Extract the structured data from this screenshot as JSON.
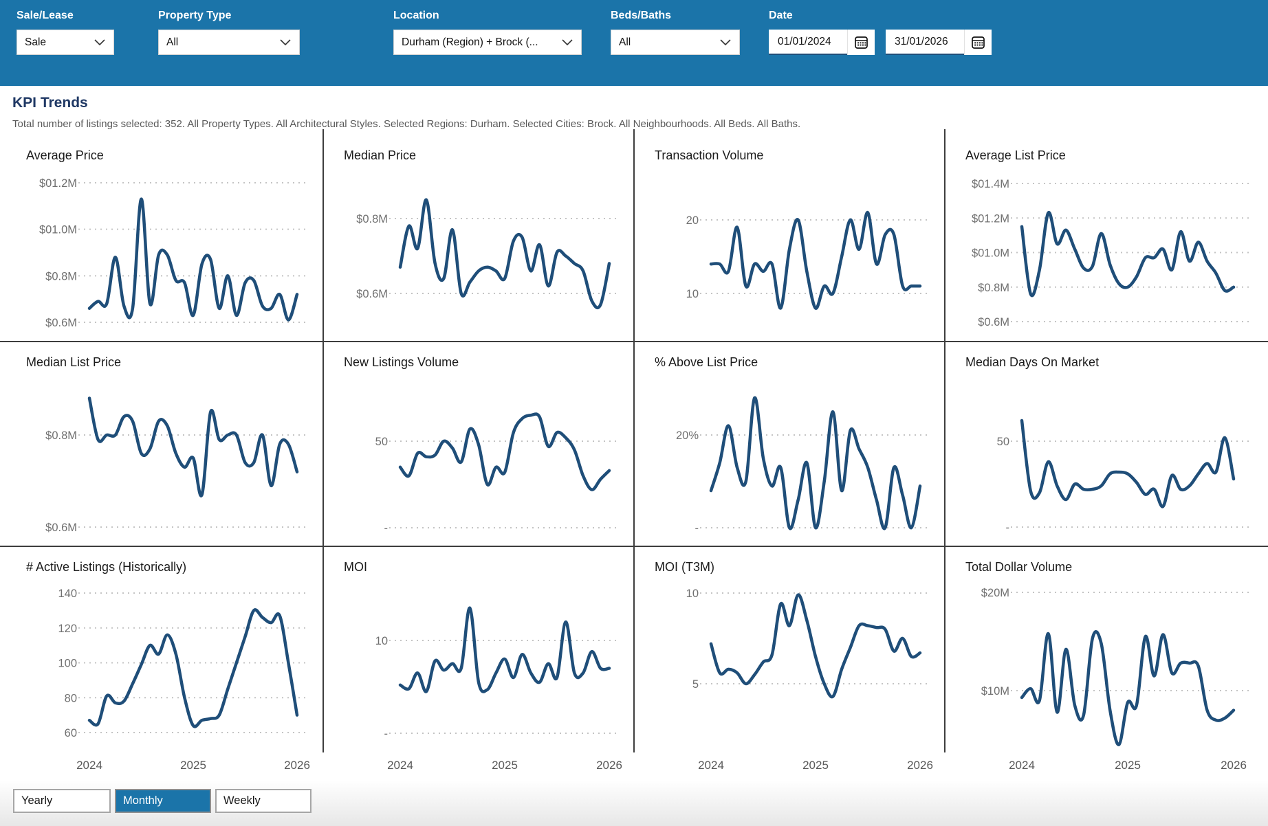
{
  "filters": {
    "sale_lease": {
      "label": "Sale/Lease",
      "value": "Sale"
    },
    "property_type": {
      "label": "Property Type",
      "value": "All"
    },
    "location": {
      "label": "Location",
      "value": "Durham (Region) + Brock (..."
    },
    "beds_baths": {
      "label": "Beds/Baths",
      "value": "All"
    },
    "date": {
      "label": "Date",
      "start": "01/01/2024",
      "end": "31/01/2026"
    }
  },
  "page": {
    "title": "KPI Trends",
    "subtitle": "Total number of listings selected: 352. All Property Types. All Architectural Styles. Selected Regions: Durham. Selected Cities: Brock. All Neighbourhoods. All Beds. All Baths."
  },
  "granularity": {
    "options": [
      "Yearly",
      "Monthly",
      "Weekly"
    ],
    "selected": "Monthly"
  },
  "colors": {
    "header_blue": "#1b74a9",
    "line_navy": "#1f4e79",
    "title_navy": "#1f3864",
    "gridline": "#c4c4c4",
    "axis_label": "#707070",
    "divider": "#3d3d3d"
  },
  "chart_data": [
    {
      "type": "line",
      "title": "Average Price",
      "x_start": "2024-01",
      "x_end": "2026-01",
      "interval": "monthly",
      "yticks": [
        {
          "v": 1.2,
          "label": "$01.2M"
        },
        {
          "v": 1.0,
          "label": "$01.0M"
        },
        {
          "v": 0.8,
          "label": "$0.8M"
        },
        {
          "v": 0.6,
          "label": "$0.6M"
        }
      ],
      "unit": "$M",
      "grid": "dashed",
      "show_x_axis": false,
      "xticks": [
        {
          "i": 0,
          "label": "2024"
        },
        {
          "i": 12,
          "label": "2025"
        },
        {
          "i": 24,
          "label": "2026"
        }
      ],
      "values": [
        0.66,
        0.69,
        0.68,
        0.88,
        0.67,
        0.66,
        1.13,
        0.68,
        0.89,
        0.89,
        0.78,
        0.77,
        0.63,
        0.85,
        0.87,
        0.66,
        0.8,
        0.63,
        0.77,
        0.78,
        0.67,
        0.66,
        0.72,
        0.61,
        0.72
      ]
    },
    {
      "type": "line",
      "title": "Median Price",
      "x_start": "2024-01",
      "x_end": "2026-01",
      "interval": "monthly",
      "yticks": [
        {
          "v": 0.8,
          "label": "$0.8M"
        },
        {
          "v": 0.6,
          "label": "$0.6M"
        }
      ],
      "unit": "$M",
      "grid": "dashed",
      "show_x_axis": false,
      "xticks": [
        {
          "i": 0,
          "label": "2024"
        },
        {
          "i": 12,
          "label": "2025"
        },
        {
          "i": 24,
          "label": "2026"
        }
      ],
      "values": [
        0.67,
        0.78,
        0.72,
        0.85,
        0.68,
        0.64,
        0.77,
        0.6,
        0.63,
        0.66,
        0.67,
        0.66,
        0.64,
        0.74,
        0.75,
        0.66,
        0.73,
        0.62,
        0.71,
        0.7,
        0.68,
        0.66,
        0.58,
        0.57,
        0.68
      ]
    },
    {
      "type": "line",
      "title": "Transaction Volume",
      "x_start": "2024-01",
      "x_end": "2026-01",
      "interval": "monthly",
      "yticks": [
        {
          "v": 20,
          "label": "20"
        },
        {
          "v": 10,
          "label": "10"
        }
      ],
      "unit": "count",
      "grid": "dashed",
      "show_x_axis": false,
      "xticks": [
        {
          "i": 0,
          "label": "2024"
        },
        {
          "i": 12,
          "label": "2025"
        },
        {
          "i": 24,
          "label": "2026"
        }
      ],
      "values": [
        14,
        14,
        13,
        19,
        11,
        14,
        13,
        14,
        8,
        16,
        20,
        13,
        8,
        11,
        10,
        15,
        20,
        16,
        21,
        14,
        18,
        18,
        11,
        11,
        11
      ]
    },
    {
      "type": "line",
      "title": "Average List Price",
      "x_start": "2024-01",
      "x_end": "2026-01",
      "interval": "monthly",
      "yticks": [
        {
          "v": 1.4,
          "label": "$01.4M"
        },
        {
          "v": 1.2,
          "label": "$01.2M"
        },
        {
          "v": 1.0,
          "label": "$01.0M"
        },
        {
          "v": 0.8,
          "label": "$0.8M"
        },
        {
          "v": 0.6,
          "label": "$0.6M"
        }
      ],
      "unit": "$M",
      "grid": "dashed",
      "show_x_axis": false,
      "xticks": [
        {
          "i": 0,
          "label": "2024"
        },
        {
          "i": 12,
          "label": "2025"
        },
        {
          "i": 24,
          "label": "2026"
        }
      ],
      "values": [
        1.15,
        0.76,
        0.9,
        1.23,
        1.05,
        1.13,
        1.02,
        0.91,
        0.92,
        1.11,
        0.93,
        0.82,
        0.8,
        0.86,
        0.97,
        0.97,
        1.02,
        0.9,
        1.12,
        0.95,
        1.06,
        0.95,
        0.88,
        0.78,
        0.8
      ]
    },
    {
      "type": "line",
      "title": "Median List Price",
      "x_start": "2024-01",
      "x_end": "2026-01",
      "interval": "monthly",
      "yticks": [
        {
          "v": 0.8,
          "label": "$0.8M"
        },
        {
          "v": 0.6,
          "label": "$0.6M"
        }
      ],
      "unit": "$M",
      "grid": "dashed",
      "show_x_axis": false,
      "xticks": [
        {
          "i": 0,
          "label": "2024"
        },
        {
          "i": 12,
          "label": "2025"
        },
        {
          "i": 24,
          "label": "2026"
        }
      ],
      "values": [
        0.88,
        0.79,
        0.8,
        0.8,
        0.84,
        0.83,
        0.76,
        0.77,
        0.83,
        0.82,
        0.76,
        0.73,
        0.75,
        0.67,
        0.85,
        0.79,
        0.8,
        0.8,
        0.74,
        0.74,
        0.8,
        0.69,
        0.78,
        0.78,
        0.72
      ]
    },
    {
      "type": "line",
      "title": "New Listings Volume",
      "x_start": "2024-01",
      "x_end": "2026-01",
      "interval": "monthly",
      "yticks": [
        {
          "v": 50,
          "label": "50"
        },
        {
          "v": 0,
          "label": "-"
        }
      ],
      "unit": "count",
      "grid": "dashed",
      "show_x_axis": false,
      "xticks": [
        {
          "i": 0,
          "label": "2024"
        },
        {
          "i": 12,
          "label": "2025"
        },
        {
          "i": 24,
          "label": "2026"
        }
      ],
      "values": [
        35,
        30,
        43,
        41,
        42,
        50,
        46,
        38,
        57,
        48,
        25,
        35,
        32,
        55,
        63,
        65,
        64,
        47,
        55,
        52,
        45,
        30,
        22,
        28,
        33
      ]
    },
    {
      "type": "line",
      "title": "% Above List Price",
      "x_start": "2024-01",
      "x_end": "2026-01",
      "interval": "monthly",
      "yticks": [
        {
          "v": 20,
          "label": "20%"
        },
        {
          "v": 0,
          "label": "-"
        }
      ],
      "unit": "%",
      "grid": "dashed",
      "show_x_axis": false,
      "xticks": [
        {
          "i": 0,
          "label": "2024"
        },
        {
          "i": 12,
          "label": "2025"
        },
        {
          "i": 24,
          "label": "2026"
        }
      ],
      "values": [
        8,
        14,
        22,
        13,
        10,
        28,
        15,
        9,
        13,
        0,
        6,
        14,
        0,
        10,
        25,
        8,
        21,
        17,
        13,
        6,
        0,
        13,
        7,
        0,
        9
      ]
    },
    {
      "type": "line",
      "title": "Median Days On Market",
      "x_start": "2024-01",
      "x_end": "2026-01",
      "interval": "monthly",
      "yticks": [
        {
          "v": 50,
          "label": "50"
        },
        {
          "v": 0,
          "label": "-"
        }
      ],
      "unit": "days",
      "grid": "dashed",
      "show_x_axis": false,
      "xticks": [
        {
          "i": 0,
          "label": "2024"
        },
        {
          "i": 12,
          "label": "2025"
        },
        {
          "i": 24,
          "label": "2026"
        }
      ],
      "values": [
        62,
        21,
        20,
        38,
        24,
        16,
        25,
        22,
        22,
        24,
        31,
        32,
        31,
        26,
        19,
        22,
        12,
        30,
        22,
        24,
        31,
        37,
        32,
        52,
        28
      ]
    },
    {
      "type": "line",
      "title": "# Active Listings (Historically)",
      "x_start": "2024-01",
      "x_end": "2026-01",
      "interval": "monthly",
      "yticks": [
        {
          "v": 140,
          "label": "140"
        },
        {
          "v": 120,
          "label": "120"
        },
        {
          "v": 100,
          "label": "100"
        },
        {
          "v": 80,
          "label": "80"
        },
        {
          "v": 60,
          "label": "60"
        }
      ],
      "unit": "count",
      "grid": "dashed",
      "show_x_axis": true,
      "xticks": [
        {
          "i": 0,
          "label": "2024"
        },
        {
          "i": 12,
          "label": "2025"
        },
        {
          "i": 24,
          "label": "2026"
        }
      ],
      "values": [
        67,
        65,
        81,
        77,
        78,
        88,
        99,
        110,
        105,
        116,
        105,
        80,
        64,
        67,
        68,
        70,
        85,
        100,
        115,
        130,
        126,
        123,
        127,
        100,
        70
      ]
    },
    {
      "type": "line",
      "title": "MOI",
      "x_start": "2024-01",
      "x_end": "2026-01",
      "interval": "monthly",
      "yticks": [
        {
          "v": 10,
          "label": "10"
        },
        {
          "v": 0,
          "label": "-"
        }
      ],
      "unit": "months",
      "grid": "dashed",
      "show_x_axis": true,
      "xticks": [
        {
          "i": 0,
          "label": "2024"
        },
        {
          "i": 12,
          "label": "2025"
        },
        {
          "i": 24,
          "label": "2026"
        }
      ],
      "values": [
        5.2,
        4.8,
        6.5,
        4.5,
        7.8,
        6.8,
        7.5,
        7.0,
        13.5,
        5.5,
        4.7,
        6.5,
        8.0,
        6.0,
        8.5,
        6.5,
        5.5,
        7.5,
        6.0,
        12.0,
        6.5,
        6.5,
        8.8,
        7.0,
        7.0
      ]
    },
    {
      "type": "line",
      "title": "MOI (T3M)",
      "x_start": "2024-01",
      "x_end": "2026-01",
      "interval": "monthly",
      "yticks": [
        {
          "v": 10,
          "label": "10"
        },
        {
          "v": 5,
          "label": "5"
        }
      ],
      "unit": "months",
      "grid": "dashed",
      "show_x_axis": true,
      "xticks": [
        {
          "i": 0,
          "label": "2024"
        },
        {
          "i": 12,
          "label": "2025"
        },
        {
          "i": 24,
          "label": "2026"
        }
      ],
      "values": [
        7.2,
        5.6,
        5.8,
        5.6,
        5.0,
        5.5,
        6.2,
        6.6,
        9.4,
        8.2,
        9.9,
        8.5,
        6.5,
        5.0,
        4.3,
        5.8,
        7.0,
        8.2,
        8.2,
        8.1,
        8.0,
        6.8,
        7.5,
        6.5,
        6.7
      ]
    },
    {
      "type": "line",
      "title": "Total Dollar Volume",
      "x_start": "2024-01",
      "x_end": "2026-01",
      "interval": "monthly",
      "yticks": [
        {
          "v": 20,
          "label": "$20M"
        },
        {
          "v": 10,
          "label": "$10M"
        }
      ],
      "unit": "$M",
      "grid": "dashed",
      "show_x_axis": true,
      "xticks": [
        {
          "i": 0,
          "label": "2024"
        },
        {
          "i": 12,
          "label": "2025"
        },
        {
          "i": 24,
          "label": "2026"
        }
      ],
      "values": [
        9.3,
        10.2,
        9.0,
        15.8,
        7.8,
        14.2,
        8.5,
        7.5,
        15.3,
        14.8,
        8.0,
        4.5,
        8.8,
        8.5,
        15.5,
        11.5,
        15.7,
        11.8,
        12.8,
        12.8,
        12.5,
        8.0,
        7.0,
        7.2,
        8.0
      ]
    }
  ]
}
